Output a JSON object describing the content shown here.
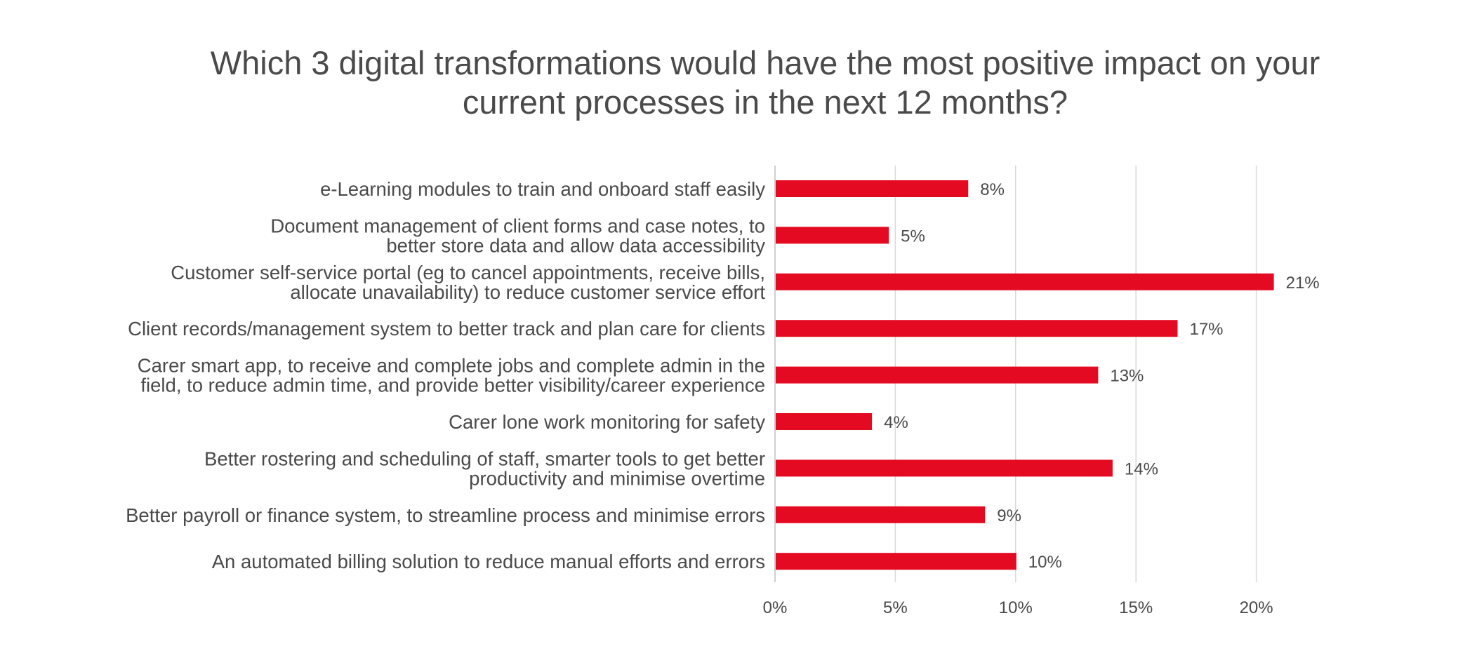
{
  "chart_data": {
    "type": "bar",
    "orientation": "horizontal",
    "title": "Which 3 digital transformations would have the most positive impact on your current processes in the next 12 months?",
    "title_lines": [
      "Which 3 digital transformations would have the most positive impact on your",
      "current processes in the next 12 months?"
    ],
    "categories": [
      [
        "e-Learning modules to train and onboard staff easily"
      ],
      [
        "Document management of client forms and case notes, to",
        "better store data and allow data accessibility"
      ],
      [
        "Customer self-service portal (eg to cancel appointments, receive bills,",
        "allocate unavailability) to reduce customer service effort"
      ],
      [
        "Client records/management system to better track and plan care for clients"
      ],
      [
        "Carer smart app, to receive and complete jobs and complete admin in the",
        "field, to reduce admin time, and provide better visibility/career experience"
      ],
      [
        "Carer lone work monitoring for safety"
      ],
      [
        "Better rostering and scheduling of staff, smarter tools to get better",
        "productivity and minimise overtime"
      ],
      [
        "Better payroll or finance system, to streamline process and minimise errors"
      ],
      [
        "An automated billing solution to reduce manual efforts and errors"
      ]
    ],
    "values": [
      8,
      5,
      21,
      17,
      13,
      4,
      14,
      9,
      10
    ],
    "bar_values": [
      8,
      4.7,
      20.7,
      16.7,
      13.4,
      4.0,
      14.0,
      8.7,
      10.0
    ],
    "value_labels": [
      "8%",
      "5%",
      "21%",
      "17%",
      "13%",
      "4%",
      "14%",
      "9%",
      "10%"
    ],
    "x_ticks": [
      0,
      5,
      10,
      15,
      20
    ],
    "x_tick_labels": [
      "0%",
      "5%",
      "10%",
      "15%",
      "20%"
    ],
    "xlim": [
      0,
      22
    ],
    "xlabel": "",
    "ylabel": "",
    "grid": "vertical",
    "legend": "none",
    "bar_color": "#e30a22",
    "grid_color": "#d9d9d9"
  }
}
